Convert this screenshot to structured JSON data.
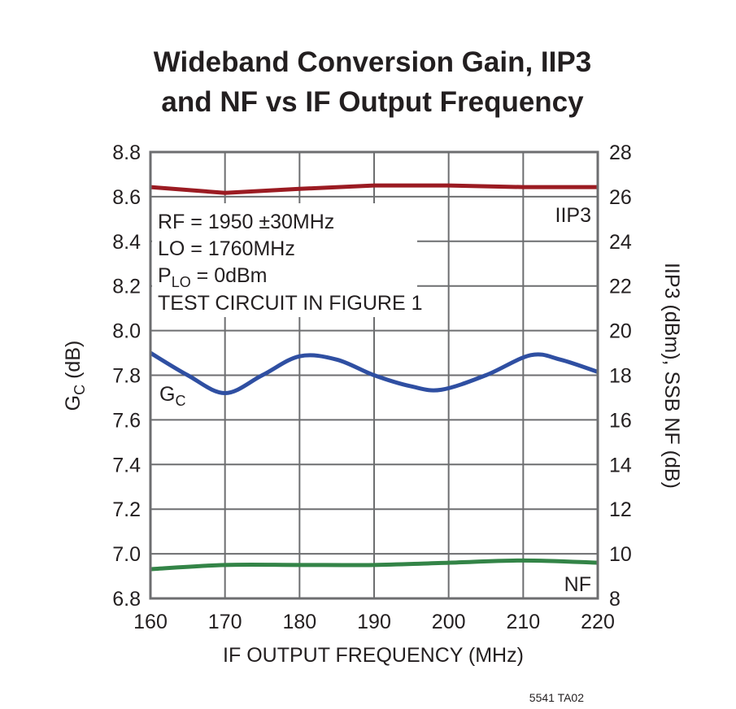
{
  "chart_data": {
    "type": "line",
    "title": [
      "Wideband Conversion Gain, IIP3",
      "and NF vs IF Output Frequency"
    ],
    "xlabel": "IF OUTPUT FREQUENCY (MHz)",
    "ylabel_left": {
      "main": "G",
      "sub": "C",
      "rest": " (dB)"
    },
    "ylabel_right": "IIP3 (dBm), SSB NF (dB)",
    "xlim": [
      160,
      220
    ],
    "ylim_left": [
      6.8,
      8.8
    ],
    "ylim_right": [
      8,
      28
    ],
    "x_ticks": [
      "160",
      "170",
      "180",
      "190",
      "200",
      "210",
      "220"
    ],
    "y_ticks_left": [
      "8.8",
      "8.6",
      "8.4",
      "8.2",
      "8.0",
      "7.8",
      "7.6",
      "7.4",
      "7.2",
      "7.0",
      "6.8"
    ],
    "y_ticks_right": [
      "28",
      "26",
      "24",
      "22",
      "20",
      "18",
      "16",
      "14",
      "12",
      "10",
      "8"
    ],
    "grid": true,
    "series": [
      {
        "name": "IIP3",
        "axis": "right",
        "color": "#9b1b22",
        "x": [
          160,
          170,
          180,
          190,
          200,
          210,
          220
        ],
        "y": [
          26.43,
          26.17,
          26.35,
          26.5,
          26.5,
          26.43,
          26.43
        ],
        "smooth": false
      },
      {
        "name": "GC",
        "axis": "left",
        "color": "#2f4fa2",
        "x": [
          160,
          165,
          170,
          175,
          180,
          185,
          190,
          195,
          199,
          205,
          211,
          215,
          220
        ],
        "y": [
          7.9,
          7.8,
          7.72,
          7.8,
          7.885,
          7.87,
          7.8,
          7.75,
          7.735,
          7.8,
          7.89,
          7.87,
          7.815
        ],
        "smooth": true
      },
      {
        "name": "NF",
        "axis": "right",
        "color": "#338447",
        "x": [
          160,
          170,
          180,
          190,
          200,
          210,
          220
        ],
        "y": [
          9.31,
          9.5,
          9.5,
          9.5,
          9.6,
          9.7,
          9.6
        ],
        "smooth": true
      }
    ],
    "series_labels": {
      "iip3": "IIP3",
      "gc_main": "G",
      "gc_sub": "C",
      "nf": "NF"
    },
    "annotation": {
      "line1": "RF = 1950 ±30MHz",
      "line2": "LO = 1760MHz",
      "line3_main": "P",
      "line3_sub": "LO",
      "line3_rest": " = 0dBm",
      "line4": "TEST CIRCUIT IN FIGURE 1"
    },
    "figure_id": "5541 TA02"
  }
}
